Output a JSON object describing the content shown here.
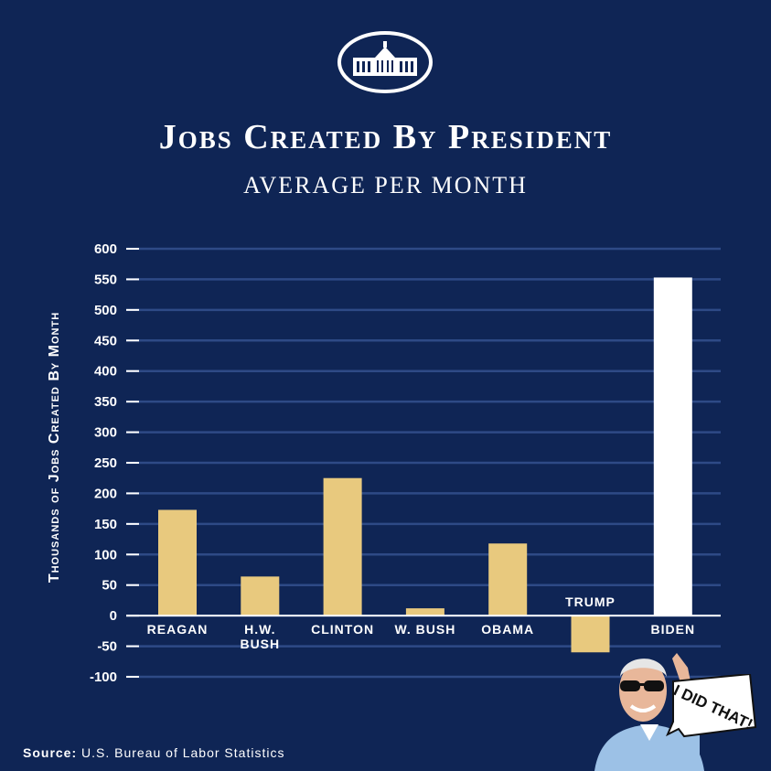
{
  "title": "Jobs Created By President",
  "subtitle": "AVERAGE PER MONTH",
  "source": {
    "label": "Source:",
    "text": "U.S. Bureau of Labor Statistics"
  },
  "speech_bubble": "I DID THAT!",
  "colors": {
    "background": "#0f2555",
    "bar": "#e8c97e",
    "highlight_bar": "#ffffff",
    "grid": "#2e4a86",
    "text": "#ffffff"
  },
  "chart_data": {
    "type": "bar",
    "title": "Jobs Created By President",
    "subtitle": "AVERAGE PER MONTH",
    "ylabel": "Thousands of Jobs Created By Month",
    "xlabel": "",
    "ylim": [
      -100,
      600
    ],
    "yticks": [
      600,
      550,
      500,
      450,
      400,
      350,
      300,
      250,
      200,
      150,
      100,
      50,
      0,
      -50,
      -100
    ],
    "grid": true,
    "categories": [
      "REAGAN",
      "H.W. BUSH",
      "CLINTON",
      "W. BUSH",
      "OBAMA",
      "TRUMP",
      "BIDEN"
    ],
    "values": [
      173,
      64,
      225,
      12,
      118,
      -60,
      553
    ],
    "highlight": "BIDEN"
  }
}
